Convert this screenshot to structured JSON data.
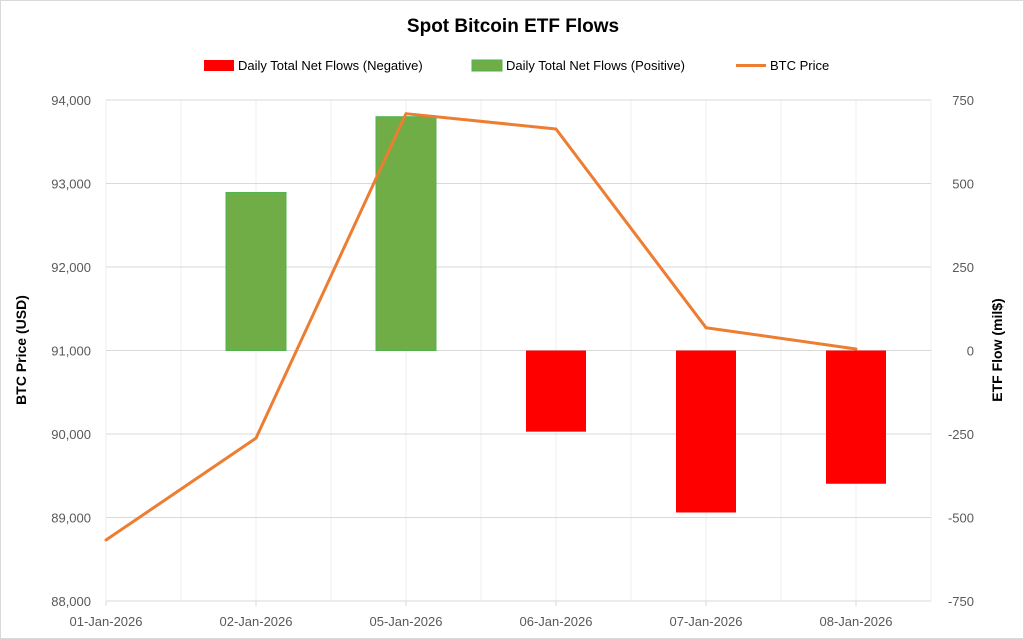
{
  "chart_data": {
    "type": "bar+line",
    "title": "Spot Bitcoin ETF Flows",
    "categories": [
      "01-Jan-2026",
      "02-Jan-2026",
      "05-Jan-2026",
      "06-Jan-2026",
      "07-Jan-2026",
      "08-Jan-2026"
    ],
    "series": [
      {
        "name": "Daily Total Net Flows (Negative)",
        "type": "bar",
        "axis": "right",
        "color": "#ff0000",
        "values": [
          null,
          null,
          null,
          -243,
          -485,
          -399
        ]
      },
      {
        "name": "Daily Total Net Flows (Positive)",
        "type": "bar",
        "axis": "right",
        "color": "#70ad47",
        "values": [
          null,
          473,
          700,
          null,
          null,
          null
        ]
      },
      {
        "name": "BTC Price",
        "type": "line",
        "axis": "left",
        "color": "#ed7d31",
        "values": [
          88730,
          89950,
          93836,
          93653,
          91273,
          91018
        ]
      }
    ],
    "ylabel": "BTC Price (USD)",
    "y2label": "ETF Flow (mil$)",
    "ylim": [
      88000,
      94000
    ],
    "y2lim": [
      -750,
      750
    ],
    "yticks": [
      "88,000",
      "89,000",
      "90,000",
      "91,000",
      "92,000",
      "93,000",
      "94,000"
    ],
    "y2ticks": [
      "-750",
      "-500",
      "-250",
      "0",
      "250",
      "500",
      "750"
    ],
    "grid": true,
    "legend": "top"
  }
}
